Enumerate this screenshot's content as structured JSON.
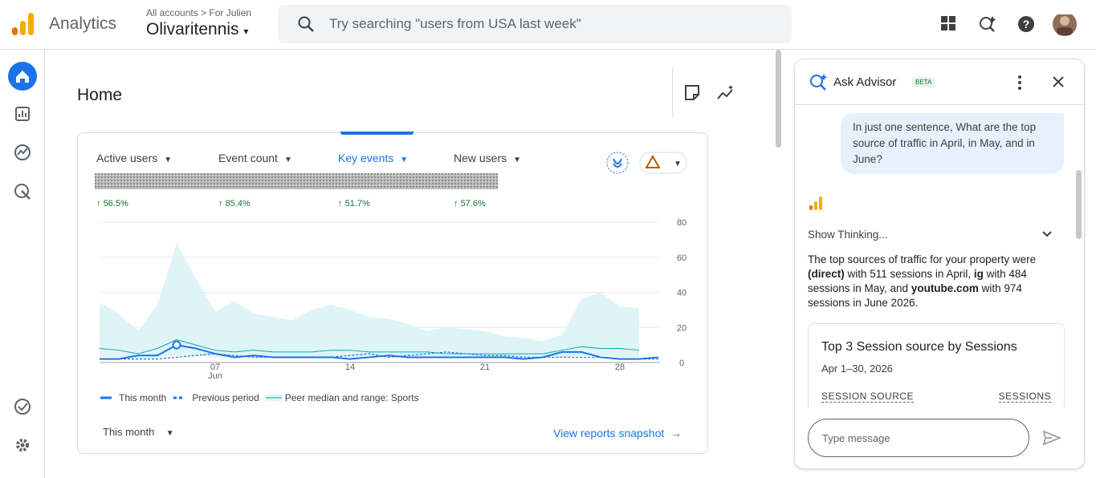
{
  "header": {
    "product": "Analytics",
    "breadcrumb": "All accounts > For Julien",
    "property": "Olivaritennis",
    "search_placeholder": "Try searching \"users from USA last week\""
  },
  "home": {
    "title": "Home",
    "kpis": [
      {
        "label": "Active users",
        "change": "56.5%"
      },
      {
        "label": "Event count",
        "change": "85.4%"
      },
      {
        "label": "Key events",
        "change": "51.7%"
      },
      {
        "label": "New users",
        "change": "57.6%"
      }
    ],
    "selected_kpi": 2,
    "compare_label": "This month",
    "link": "View reports snapshot"
  },
  "chart_data": {
    "type": "line",
    "categories": [
      null,
      null,
      null,
      null,
      null,
      null,
      "07",
      null,
      null,
      null,
      null,
      null,
      null,
      "14",
      null,
      null,
      null,
      null,
      null,
      null,
      "21",
      null,
      null,
      null,
      null,
      null,
      null,
      "28",
      null,
      null
    ],
    "x_sublabel": "Jun",
    "ylim": [
      0,
      80
    ],
    "yticks": [
      0,
      20,
      40,
      60,
      80
    ],
    "grid": true,
    "series": [
      {
        "name": "This month",
        "color": "#1a73e8",
        "style": "solid",
        "highlight": 4,
        "values": [
          2,
          2,
          4,
          4,
          10,
          8,
          5,
          3,
          4,
          3,
          3,
          3,
          3,
          2,
          3,
          4,
          3,
          3,
          3,
          3,
          3,
          3,
          2,
          3,
          6,
          6,
          3,
          2,
          2,
          3
        ]
      },
      {
        "name": "Previous period",
        "color": "#1a73e8",
        "style": "dashed",
        "values": [
          2,
          2,
          2,
          2,
          3,
          4,
          5,
          4,
          3,
          3,
          3,
          3,
          3,
          4,
          5,
          3,
          4,
          5,
          6,
          5,
          4,
          4,
          3,
          3,
          3,
          3,
          3,
          2,
          2,
          2
        ]
      },
      {
        "name": "Peer median and range: Sports",
        "color": "#12a4af",
        "range_color": "#dff4f7",
        "style": "range",
        "values": [
          8,
          7,
          5,
          8,
          13,
          10,
          7,
          6,
          7,
          6,
          6,
          6,
          7,
          7,
          6,
          6,
          6,
          6,
          5,
          5,
          5,
          5,
          5,
          5,
          7,
          9,
          8,
          8,
          7,
          null
        ],
        "range_low": [
          3,
          3,
          2,
          3,
          4,
          4,
          3,
          3,
          3,
          3,
          3,
          3,
          3,
          3,
          3,
          3,
          3,
          3,
          3,
          3,
          3,
          3,
          3,
          3,
          3,
          4,
          4,
          3,
          3,
          null
        ],
        "range_high": [
          34,
          28,
          18,
          33,
          68,
          48,
          29,
          35,
          28,
          26,
          24,
          30,
          33,
          30,
          26,
          25,
          22,
          18,
          20,
          19,
          18,
          15,
          14,
          12,
          16,
          36,
          40,
          32,
          31,
          null
        ]
      }
    ]
  },
  "advisor": {
    "title": "Ask Advisor",
    "badge": "BETA",
    "user_message": "In just one sentence, What are the top source of traffic in April, in May, and in June?",
    "show_thinking": "Show Thinking...",
    "response": [
      {
        "text": "The top sources of traffic for your property were ",
        "bold": false
      },
      {
        "text": "(direct)",
        "bold": true
      },
      {
        "text": " with 511 sessions in April, ",
        "bold": false
      },
      {
        "text": "ig",
        "bold": true
      },
      {
        "text": " with 484 sessions in May, and ",
        "bold": false
      },
      {
        "text": "youtube.com",
        "bold": true
      },
      {
        "text": " with 974 sessions in June 2026.",
        "bold": false
      }
    ],
    "card": {
      "title": "Top 3 Session source by Sessions",
      "date": "Apr 1–30, 2026",
      "col1": "SESSION SOURCE",
      "col2": "SESSIONS"
    },
    "input_placeholder": "Type message"
  }
}
